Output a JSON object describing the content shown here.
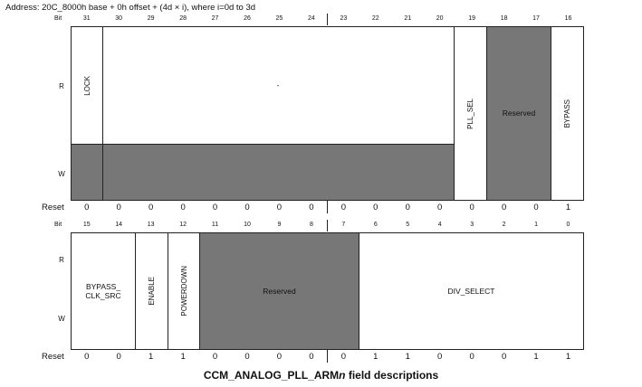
{
  "address": "Address: 20C_8000h base + 0h offset + (4d × i), where i=0d to 3d",
  "labels": {
    "bit": "Bit",
    "read": "R",
    "write": "W",
    "reset": "Reset"
  },
  "upper": {
    "bits": [
      "31",
      "30",
      "29",
      "28",
      "27",
      "26",
      "25",
      "24",
      "23",
      "22",
      "21",
      "20",
      "19",
      "18",
      "17",
      "16"
    ],
    "fields": {
      "lock": "LOCK",
      "dash": "-",
      "pll_sel": "PLL_SEL",
      "reserved": "Reserved",
      "bypass": "BYPASS"
    },
    "reset": [
      "0",
      "0",
      "0",
      "0",
      "0",
      "0",
      "0",
      "0",
      "0",
      "0",
      "0",
      "0",
      "0",
      "0",
      "0",
      "1"
    ]
  },
  "lower": {
    "bits": [
      "15",
      "14",
      "13",
      "12",
      "11",
      "10",
      "9",
      "8",
      "7",
      "6",
      "5",
      "4",
      "3",
      "2",
      "1",
      "0"
    ],
    "fields": {
      "bypass_clk_src": "BYPASS_\nCLK_SRC",
      "enable": "ENABLE",
      "powerdown": "POWERDOWN",
      "reserved": "Reserved",
      "div_select": "DIV_SELECT"
    },
    "reset": [
      "0",
      "0",
      "1",
      "1",
      "0",
      "0",
      "0",
      "0",
      "0",
      "1",
      "1",
      "0",
      "0",
      "0",
      "1",
      "1"
    ]
  },
  "caption": {
    "main": "CCM_ANALOG_PLL_ARM",
    "italic": "n",
    "suffix": " field descriptions"
  },
  "colors": {
    "reserved_fill": "#777777",
    "border": "#222222"
  }
}
